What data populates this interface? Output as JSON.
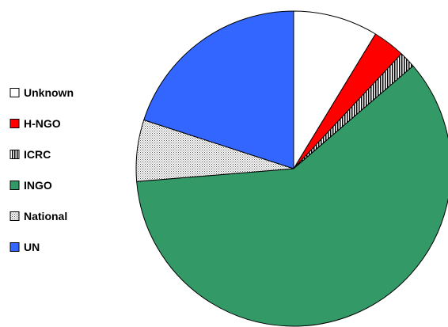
{
  "chart_data": {
    "type": "pie",
    "title": "",
    "legend_position": "left",
    "slices": [
      {
        "label": "Unknown",
        "value": 8.7,
        "color": "#ffffff",
        "pattern": "none"
      },
      {
        "label": "H-NGO",
        "value": 3.3,
        "color": "#ff0000",
        "pattern": "none"
      },
      {
        "label": "ICRC",
        "value": 1.7,
        "color": "#ffffff",
        "pattern": "vertical-stripes"
      },
      {
        "label": "INGO",
        "value": 60.0,
        "color": "#339966",
        "pattern": "none"
      },
      {
        "label": "National",
        "value": 6.3,
        "color": "#ffffff",
        "pattern": "dots"
      },
      {
        "label": "UN",
        "value": 20.0,
        "color": "#3366ff",
        "pattern": "none"
      }
    ]
  }
}
